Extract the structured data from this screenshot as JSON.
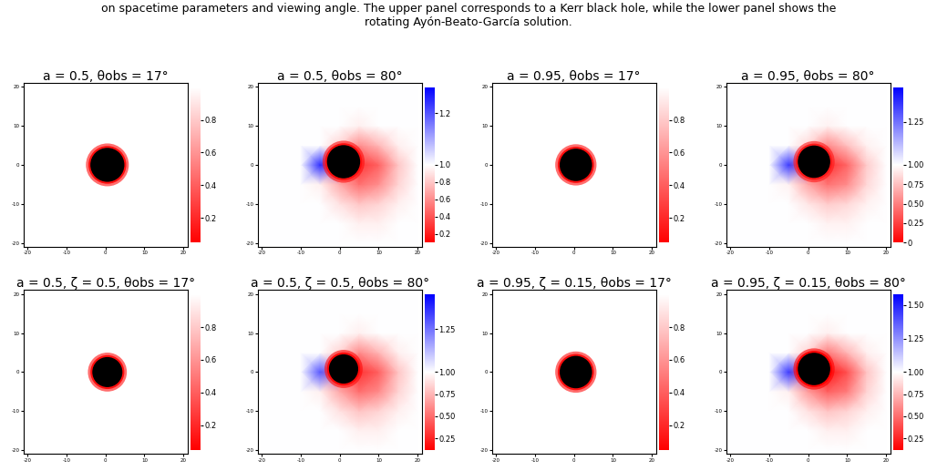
{
  "caption": "on spacetime parameters and viewing angle. The upper panel corresponds to a Kerr black hole, while the lower panel shows the\nrotating Ayón-Beato-García solution.",
  "chart_data": [
    {
      "type": "heatmap",
      "title": "a = 0.5, θobs = 17°",
      "xlim": [
        -21,
        21
      ],
      "ylim": [
        -21,
        21
      ],
      "xticks": [
        -20,
        -10,
        0,
        10,
        20
      ],
      "yticks": [
        -20,
        -10,
        0,
        10,
        20
      ],
      "colorbar": {
        "range": [
          0.05,
          1.0
        ],
        "ticks": [
          0.2,
          0.4,
          0.6,
          0.8
        ]
      },
      "shadow": {
        "center": [
          0.5,
          0
        ],
        "radius": 4.6
      },
      "ring_value": 0.1
    },
    {
      "type": "heatmap",
      "title": "a = 0.5, θobs = 80°",
      "xlim": [
        -21,
        21
      ],
      "ylim": [
        -21,
        21
      ],
      "xticks": [
        -20,
        -10,
        0,
        10,
        20
      ],
      "yticks": [
        -20,
        -10,
        0,
        10,
        20
      ],
      "colorbar": {
        "range": [
          0.1,
          1.3
        ],
        "ticks": [
          0.2,
          0.4,
          0.6,
          0.8,
          {
            "value": 1.0,
            "label": "1.0"
          },
          1.2
        ],
        "center": 1.0
      },
      "shadow": {
        "center": [
          1,
          0.8
        ],
        "radius": 4.5
      },
      "ring_value": 0.15,
      "grid_x": [
        -20,
        -15,
        -10,
        -5,
        0,
        5,
        10,
        15,
        20
      ],
      "grid_y": [
        -20,
        -15,
        -10,
        -5,
        0,
        5,
        10,
        15,
        20
      ],
      "cells": [
        [
          1,
          1,
          1,
          1,
          1,
          1,
          1,
          1,
          1
        ],
        [
          1,
          1,
          1,
          1,
          1,
          0.95,
          0.95,
          1,
          1
        ],
        [
          1,
          1,
          1,
          1,
          0.9,
          0.8,
          0.85,
          0.95,
          1
        ],
        [
          1,
          1,
          1,
          0.95,
          0.7,
          0.5,
          0.6,
          0.85,
          1
        ],
        [
          1,
          1,
          1,
          1.25,
          0.6,
          0.3,
          0.45,
          0.8,
          1
        ],
        [
          1,
          1,
          1,
          1,
          0.85,
          0.6,
          0.75,
          0.95,
          1
        ],
        [
          1,
          1,
          1,
          1,
          1,
          0.95,
          1,
          1,
          1
        ],
        [
          1,
          1,
          1,
          1,
          1,
          1,
          1,
          1,
          1
        ],
        [
          1,
          1,
          1,
          1,
          1,
          1,
          1,
          1,
          1
        ]
      ]
    },
    {
      "type": "heatmap",
      "title": "a = 0.95, θobs = 17°",
      "xlim": [
        -21,
        21
      ],
      "ylim": [
        -21,
        21
      ],
      "xticks": [
        -20,
        -10,
        0,
        10,
        20
      ],
      "yticks": [
        -20,
        -10,
        0,
        10,
        20
      ],
      "colorbar": {
        "range": [
          0.05,
          1.0
        ],
        "ticks": [
          0.2,
          0.4,
          0.6,
          0.8
        ]
      },
      "shadow": {
        "center": [
          0.5,
          0
        ],
        "radius": 4.4
      },
      "ring_value": 0.1
    },
    {
      "type": "heatmap",
      "title": "a = 0.95, θobs = 80°",
      "xlim": [
        -21,
        21
      ],
      "ylim": [
        -21,
        21
      ],
      "xticks": [
        -20,
        -10,
        0,
        10,
        20
      ],
      "yticks": [
        -20,
        -10,
        0,
        10,
        20
      ],
      "colorbar": {
        "range": [
          0,
          1.45
        ],
        "ticks": [
          0,
          0.25,
          {
            "value": 0.5,
            "label": "0.50"
          },
          0.75,
          {
            "value": 1.0,
            "label": "1.00"
          },
          1.25
        ],
        "center": 1.0
      },
      "shadow": {
        "center": [
          1.5,
          0.8
        ],
        "radius": 4.4
      },
      "ring_value": 0.1,
      "grid_x": [
        -20,
        -15,
        -10,
        -5,
        0,
        5,
        10,
        15,
        20
      ],
      "grid_y": [
        -20,
        -15,
        -10,
        -5,
        0,
        5,
        10,
        15,
        20
      ],
      "cells": [
        [
          1,
          1,
          1,
          1,
          1,
          1,
          1,
          1,
          1
        ],
        [
          1,
          1,
          1,
          1,
          1,
          0.95,
          0.95,
          1,
          1
        ],
        [
          1,
          1,
          1,
          1,
          0.9,
          0.8,
          0.85,
          0.95,
          1
        ],
        [
          1,
          1,
          1,
          0.95,
          0.65,
          0.45,
          0.55,
          0.85,
          1
        ],
        [
          1,
          1,
          1,
          1.35,
          0.55,
          0.2,
          0.4,
          0.8,
          1
        ],
        [
          1,
          1,
          1,
          1,
          0.85,
          0.55,
          0.75,
          0.95,
          1
        ],
        [
          1,
          1,
          1,
          1,
          1,
          0.95,
          1,
          1,
          1
        ],
        [
          1,
          1,
          1,
          1,
          1,
          1,
          1,
          1,
          1
        ],
        [
          1,
          1,
          1,
          1,
          1,
          1,
          1,
          1,
          1
        ]
      ]
    },
    {
      "type": "heatmap",
      "title": "a = 0.5, ζ = 0.5, θobs = 17°",
      "xlim": [
        -21,
        21
      ],
      "ylim": [
        -21,
        21
      ],
      "xticks": [
        -20,
        -10,
        0,
        10,
        20
      ],
      "yticks": [
        -20,
        -10,
        0,
        10,
        20
      ],
      "colorbar": {
        "range": [
          0.05,
          1.0
        ],
        "ticks": [
          0.2,
          0.4,
          0.6,
          0.8
        ]
      },
      "shadow": {
        "center": [
          0.5,
          0
        ],
        "radius": 4.1
      },
      "ring_value": 0.1
    },
    {
      "type": "heatmap",
      "title": "a = 0.5, ζ = 0.5, θobs = 80°",
      "xlim": [
        -21,
        21
      ],
      "ylim": [
        -21,
        21
      ],
      "xticks": [
        -20,
        -10,
        0,
        10,
        20
      ],
      "yticks": [
        -20,
        -10,
        0,
        10,
        20
      ],
      "colorbar": {
        "range": [
          0.12,
          1.45
        ],
        "ticks": [
          0.25,
          {
            "value": 0.5,
            "label": "0.50"
          },
          0.75,
          {
            "value": 1.0,
            "label": "1.00"
          },
          1.25
        ],
        "center": 1.0
      },
      "shadow": {
        "center": [
          1,
          0.8
        ],
        "radius": 4.0
      },
      "ring_value": 0.15,
      "grid_x": [
        -20,
        -15,
        -10,
        -5,
        0,
        5,
        10,
        15,
        20
      ],
      "grid_y": [
        -20,
        -15,
        -10,
        -5,
        0,
        5,
        10,
        15,
        20
      ],
      "cells": [
        [
          1,
          1,
          1,
          1,
          1,
          1,
          1,
          1,
          1
        ],
        [
          1,
          1,
          1,
          1,
          1,
          0.95,
          0.95,
          1,
          1
        ],
        [
          1,
          1,
          1,
          1,
          0.9,
          0.8,
          0.85,
          0.95,
          1
        ],
        [
          1,
          1,
          1,
          0.95,
          0.7,
          0.5,
          0.6,
          0.85,
          1
        ],
        [
          1,
          1,
          1,
          1.3,
          0.6,
          0.3,
          0.45,
          0.8,
          1
        ],
        [
          1,
          1,
          1,
          1,
          0.85,
          0.6,
          0.75,
          0.95,
          1
        ],
        [
          1,
          1,
          1,
          1,
          1,
          0.95,
          1,
          1,
          1
        ],
        [
          1,
          1,
          1,
          1,
          1,
          1,
          1,
          1,
          1
        ],
        [
          1,
          1,
          1,
          1,
          1,
          1,
          1,
          1,
          1
        ]
      ]
    },
    {
      "type": "heatmap",
      "title": "a = 0.95, ζ = 0.15, θobs = 17°",
      "xlim": [
        -21,
        21
      ],
      "ylim": [
        -21,
        21
      ],
      "xticks": [
        -20,
        -10,
        0,
        10,
        20
      ],
      "yticks": [
        -20,
        -10,
        0,
        10,
        20
      ],
      "colorbar": {
        "range": [
          0.05,
          1.0
        ],
        "ticks": [
          0.2,
          0.4,
          0.6,
          0.8
        ]
      },
      "shadow": {
        "center": [
          0.5,
          0
        ],
        "radius": 4.4
      },
      "ring_value": 0.1
    },
    {
      "type": "heatmap",
      "title": "a = 0.95, ζ = 0.15, θobs = 80°",
      "xlim": [
        -21,
        21
      ],
      "ylim": [
        -21,
        21
      ],
      "xticks": [
        -20,
        -10,
        0,
        10,
        20
      ],
      "yticks": [
        -20,
        -10,
        0,
        10,
        20
      ],
      "colorbar": {
        "range": [
          0.12,
          1.58
        ],
        "ticks": [
          0.25,
          {
            "value": 0.5,
            "label": "0.50"
          },
          0.75,
          {
            "value": 1.0,
            "label": "1.00"
          },
          1.25,
          {
            "value": 1.5,
            "label": "1.50"
          }
        ],
        "center": 1.0
      },
      "shadow": {
        "center": [
          1.5,
          0.8
        ],
        "radius": 4.4
      },
      "ring_value": 0.1,
      "grid_x": [
        -20,
        -15,
        -10,
        -5,
        0,
        5,
        10,
        15,
        20
      ],
      "grid_y": [
        -20,
        -15,
        -10,
        -5,
        0,
        5,
        10,
        15,
        20
      ],
      "cells": [
        [
          1,
          1,
          1,
          1,
          1,
          1,
          1,
          1,
          1
        ],
        [
          1,
          1,
          1,
          1,
          1,
          0.95,
          0.95,
          1,
          1
        ],
        [
          1,
          1,
          1,
          1,
          0.9,
          0.8,
          0.85,
          0.95,
          1
        ],
        [
          1,
          1,
          1,
          0.95,
          0.65,
          0.45,
          0.55,
          0.85,
          1
        ],
        [
          1,
          1,
          1,
          1.45,
          0.55,
          0.2,
          0.4,
          0.8,
          1
        ],
        [
          1,
          1,
          1,
          1,
          0.85,
          0.55,
          0.75,
          0.95,
          1
        ],
        [
          1,
          1,
          1,
          1,
          1,
          0.95,
          1,
          1,
          1
        ],
        [
          1,
          1,
          1,
          1,
          1,
          1,
          1,
          1,
          1
        ],
        [
          1,
          1,
          1,
          1,
          1,
          1,
          1,
          1,
          1
        ]
      ]
    }
  ]
}
